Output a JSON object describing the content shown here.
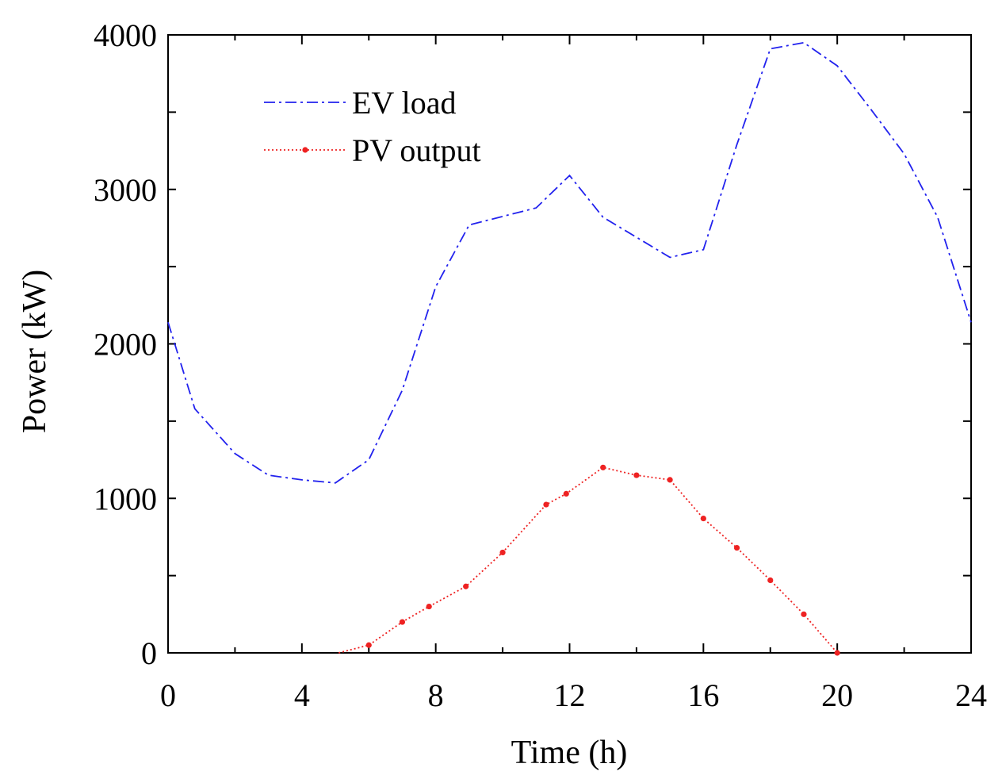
{
  "chart_data": {
    "type": "line",
    "title": "",
    "xlabel": "Time (h)",
    "ylabel": "Power (kW)",
    "xlim": [
      0,
      24
    ],
    "ylim": [
      0,
      4000
    ],
    "xticks": [
      0,
      4,
      8,
      12,
      16,
      20,
      24
    ],
    "yticks": [
      0,
      1000,
      2000,
      3000,
      4000
    ],
    "grid": false,
    "legend_position": "top-left",
    "series": [
      {
        "name": "EV load",
        "color": "#2222ee",
        "line_style": "dash-dot",
        "marker": "none",
        "x": [
          0,
          0.8,
          2,
          3,
          4,
          5,
          6,
          7,
          8,
          9,
          11,
          12,
          13,
          14,
          15,
          16,
          17,
          18,
          19,
          20,
          21,
          22,
          23,
          24
        ],
        "y": [
          2140,
          1580,
          1290,
          1150,
          1120,
          1100,
          1250,
          1700,
          2370,
          2770,
          2880,
          3090,
          2820,
          2690,
          2560,
          2610,
          3290,
          3910,
          3950,
          3800,
          3520,
          3230,
          2820,
          2140
        ]
      },
      {
        "name": "PV output",
        "color": "#ee2222",
        "line_style": "dotted",
        "marker": "dot",
        "x": [
          5.1,
          6,
          7,
          7.8,
          8.9,
          10,
          11.3,
          11.9,
          13,
          14,
          15,
          16,
          17,
          18,
          19,
          20
        ],
        "y": [
          0,
          50,
          200,
          300,
          430,
          650,
          960,
          1030,
          1200,
          1150,
          1120,
          870,
          680,
          470,
          250,
          0
        ],
        "marker_x": [
          6,
          7,
          7.8,
          8.9,
          10,
          11.3,
          11.9,
          13,
          14,
          15,
          16,
          17,
          18,
          19,
          20
        ],
        "marker_y": [
          50,
          200,
          300,
          430,
          650,
          960,
          1030,
          1200,
          1150,
          1120,
          870,
          680,
          470,
          250,
          0
        ]
      }
    ]
  }
}
